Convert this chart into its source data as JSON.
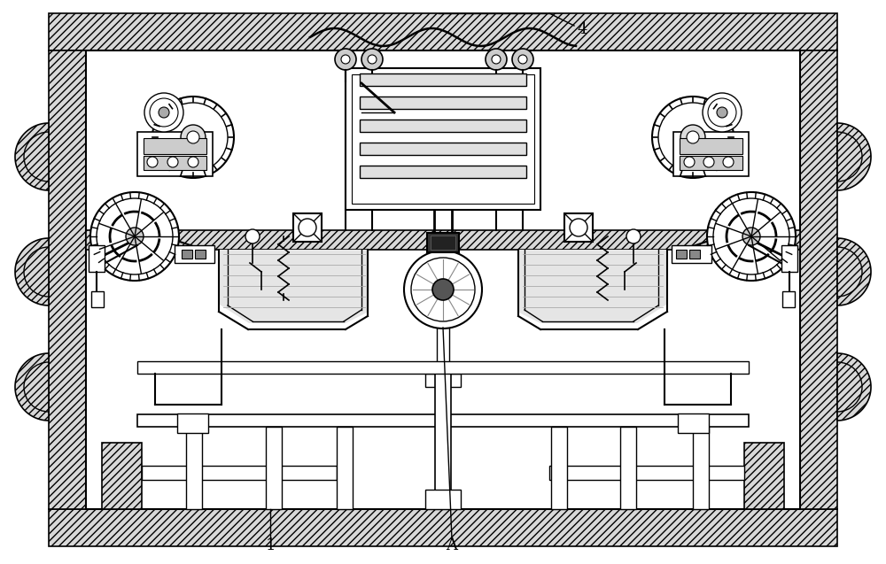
{
  "fig_width": 10.0,
  "fig_height": 6.37,
  "bg_color": "#ffffff",
  "lc": "#000000",
  "label_1": "1",
  "label_A": "A",
  "label_4": "4",
  "font_size": 13
}
